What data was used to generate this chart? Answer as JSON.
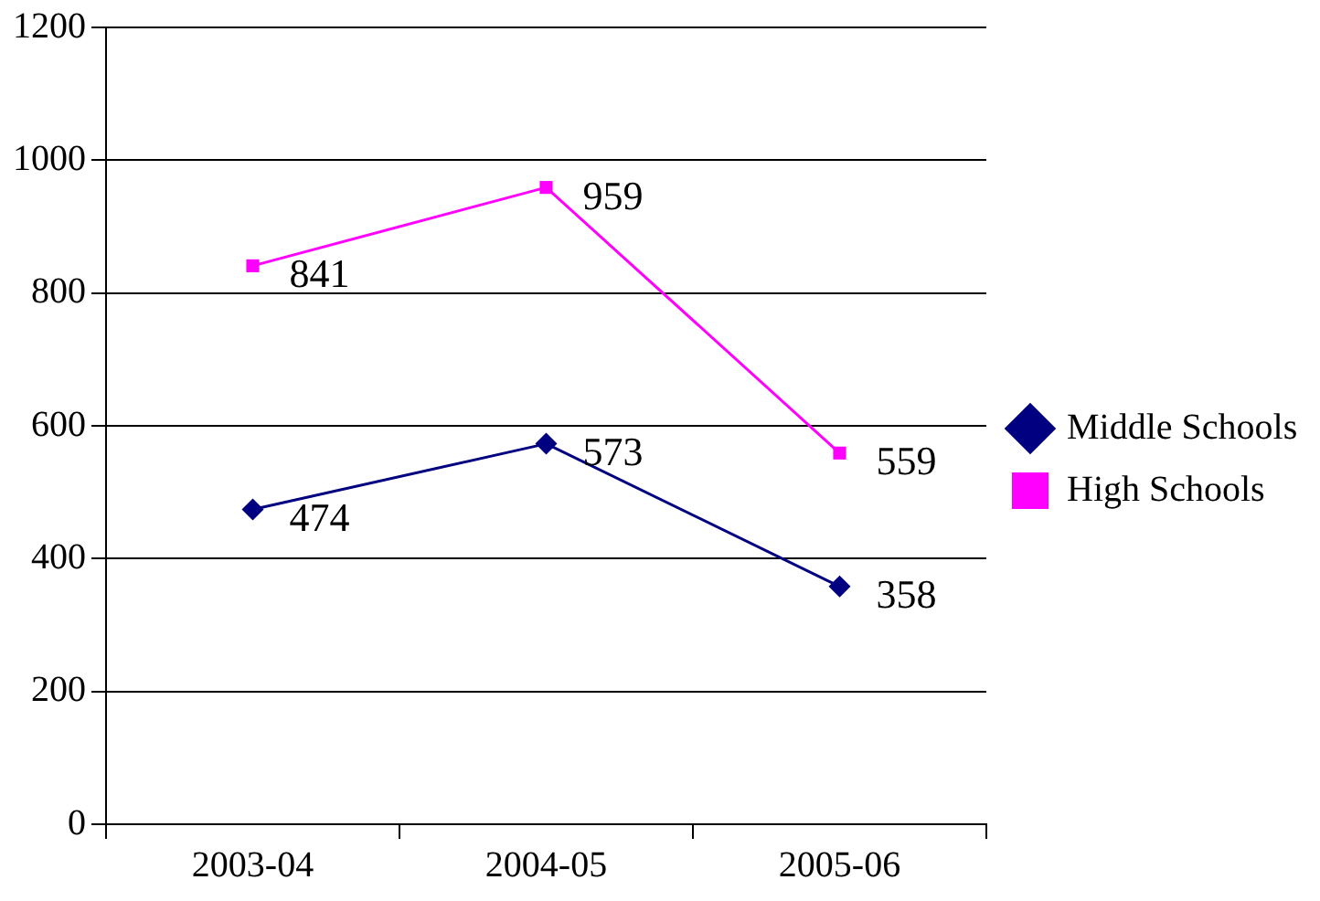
{
  "chart_data": {
    "type": "line",
    "categories": [
      "2003-04",
      "2004-05",
      "2005-06"
    ],
    "series": [
      {
        "name": "Middle Schools",
        "color": "#000080",
        "values": [
          474,
          573,
          358
        ],
        "marker": "diamond"
      },
      {
        "name": "High Schools",
        "color": "#ff00ff",
        "values": [
          841,
          959,
          559
        ],
        "marker": "square"
      }
    ],
    "ylim": [
      0,
      1200
    ],
    "yticks": [
      0,
      200,
      400,
      600,
      800,
      1000,
      1200
    ],
    "grid": "y",
    "legend": "right",
    "data_labels": true
  }
}
